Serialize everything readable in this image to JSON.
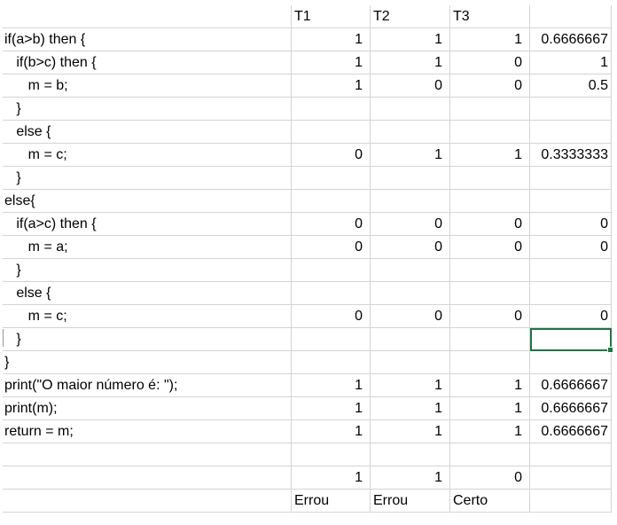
{
  "sheet": {
    "header": {
      "t1": "T1",
      "t2": "T2",
      "t3": "T3"
    },
    "rows": [
      {
        "code": "if(a>b) then {",
        "t1": "1",
        "t2": "1",
        "t3": "1",
        "result": "0.6666667"
      },
      {
        "code": "   if(b>c) then {",
        "t1": "1",
        "t2": "1",
        "t3": "0",
        "result": "1"
      },
      {
        "code": "      m = b;",
        "t1": "1",
        "t2": "0",
        "t3": "0",
        "result": "0.5"
      },
      {
        "code": "   }",
        "t1": "",
        "t2": "",
        "t3": "",
        "result": ""
      },
      {
        "code": "   else {",
        "t1": "",
        "t2": "",
        "t3": "",
        "result": ""
      },
      {
        "code": "      m = c;",
        "t1": "0",
        "t2": "1",
        "t3": "1",
        "result": "0.3333333"
      },
      {
        "code": "   }",
        "t1": "",
        "t2": "",
        "t3": "",
        "result": ""
      },
      {
        "code": "else{",
        "t1": "",
        "t2": "",
        "t3": "",
        "result": ""
      },
      {
        "code": "   if(a>c) then {",
        "t1": "0",
        "t2": "0",
        "t3": "0",
        "result": "0"
      },
      {
        "code": "      m = a;",
        "t1": "0",
        "t2": "0",
        "t3": "0",
        "result": "0"
      },
      {
        "code": "   }",
        "t1": "",
        "t2": "",
        "t3": "",
        "result": ""
      },
      {
        "code": "   else {",
        "t1": "",
        "t2": "",
        "t3": "",
        "result": ""
      },
      {
        "code": "      m = c;",
        "t1": "0",
        "t2": "0",
        "t3": "0",
        "result": "0"
      },
      {
        "code": "   }",
        "t1": "",
        "t2": "",
        "t3": "",
        "result": ""
      },
      {
        "code": "}",
        "t1": "",
        "t2": "",
        "t3": "",
        "result": ""
      },
      {
        "code": "print(\"O maior número é: \");",
        "t1": "1",
        "t2": "1",
        "t3": "1",
        "result": "0.6666667"
      },
      {
        "code": "print(m);",
        "t1": "1",
        "t2": "1",
        "t3": "1",
        "result": "0.6666667"
      },
      {
        "code": "return = m;",
        "t1": "1",
        "t2": "1",
        "t3": "1",
        "result": "0.6666667"
      },
      {
        "code": "",
        "t1": "",
        "t2": "",
        "t3": "",
        "result": ""
      },
      {
        "code": "",
        "t1": "1",
        "t2": "1",
        "t3": "0",
        "result": ""
      }
    ],
    "verdicts": {
      "t1": "Errou",
      "t2": "Errou",
      "t3": "Certo"
    }
  }
}
